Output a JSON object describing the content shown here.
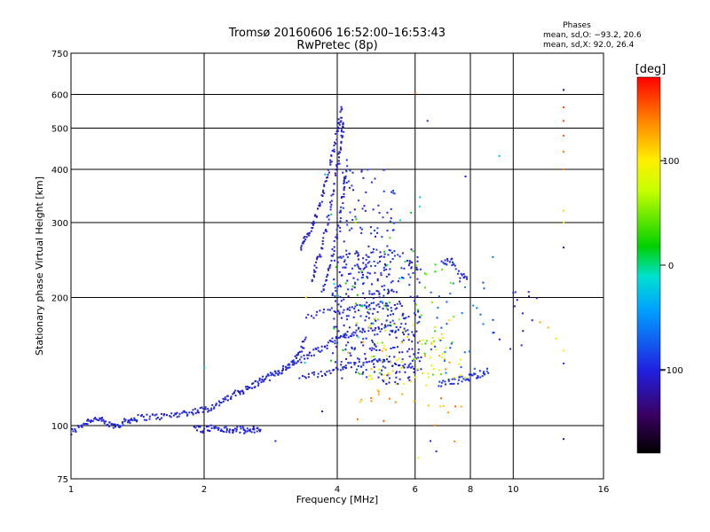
{
  "chart_data": {
    "type": "scatter",
    "title": "Tromsø 20160606 16:52:00–16:53:43",
    "subtitle": "RwPretec (8p)",
    "xlabel": "Frequency [MHz]",
    "ylabel": "Stationary phase Virtual Height [km]",
    "x_scale": "log",
    "y_scale": "log",
    "xlim": [
      1,
      16
    ],
    "ylim": [
      75,
      750
    ],
    "x_ticks": [
      "1",
      "2",
      "4",
      "6",
      "8",
      "10",
      "16"
    ],
    "x_tick_values": [
      1,
      2,
      4,
      6,
      8,
      10,
      16
    ],
    "y_ticks": [
      "75",
      "100",
      "200",
      "300",
      "400",
      "500",
      "600",
      "750"
    ],
    "y_tick_values": [
      75,
      100,
      200,
      300,
      400,
      500,
      600,
      750
    ],
    "grid": true,
    "phases_box": {
      "title": "Phases",
      "line_o": "mean, sd,O: −93.2, 20.6",
      "line_x": "mean, sd,X:  92.0, 26.4"
    },
    "colorbar": {
      "label": "[deg]",
      "range": [
        -180,
        180
      ],
      "tick_labels": [
        "100",
        "0",
        "−100"
      ],
      "tick_values": [
        100,
        0,
        -100
      ]
    },
    "traces": [
      {
        "name": "",
        "phase": -100,
        "points": [
          [
            1.0,
            96
          ],
          [
            1.05,
            100
          ],
          [
            1.1,
            103
          ],
          [
            1.15,
            104
          ],
          [
            1.2,
            101
          ],
          [
            1.25,
            100
          ],
          [
            1.3,
            101
          ],
          [
            1.35,
            103
          ],
          [
            1.4,
            104
          ],
          [
            1.5,
            105
          ],
          [
            1.6,
            105
          ],
          [
            1.7,
            106
          ],
          [
            1.8,
            107
          ],
          [
            1.9,
            108
          ],
          [
            2.0,
            109
          ],
          [
            2.1,
            111
          ],
          [
            2.2,
            114
          ],
          [
            2.3,
            117
          ],
          [
            2.4,
            120
          ],
          [
            2.5,
            122
          ],
          [
            2.6,
            125
          ],
          [
            2.7,
            128
          ],
          [
            2.8,
            130
          ],
          [
            2.9,
            133
          ],
          [
            3.0,
            135
          ],
          [
            3.1,
            138
          ],
          [
            3.2,
            142
          ],
          [
            3.3,
            150
          ],
          [
            3.4,
            160
          ]
        ]
      },
      {
        "name": "",
        "phase": -100,
        "points": [
          [
            1.9,
            99
          ],
          [
            2.0,
            98
          ],
          [
            2.1,
            99
          ],
          [
            2.2,
            98
          ],
          [
            2.3,
            97
          ],
          [
            2.4,
            98
          ],
          [
            2.5,
            97
          ],
          [
            2.6,
            98
          ],
          [
            2.7,
            98
          ]
        ]
      },
      {
        "name": "",
        "phase": -105,
        "points": [
          [
            3.3,
            262
          ],
          [
            3.4,
            275
          ],
          [
            3.5,
            292
          ],
          [
            3.6,
            315
          ],
          [
            3.7,
            345
          ],
          [
            3.8,
            385
          ],
          [
            3.9,
            430
          ],
          [
            4.0,
            490
          ],
          [
            4.05,
            520
          ],
          [
            4.1,
            560
          ]
        ]
      },
      {
        "name": "",
        "phase": -105,
        "points": [
          [
            3.5,
            220
          ],
          [
            3.6,
            240
          ],
          [
            3.7,
            265
          ],
          [
            3.8,
            300
          ],
          [
            3.9,
            345
          ],
          [
            4.0,
            400
          ],
          [
            4.05,
            440
          ],
          [
            4.1,
            480
          ],
          [
            4.15,
            520
          ]
        ]
      },
      {
        "name": "",
        "phase": -100,
        "points": [
          [
            3.7,
            205
          ],
          [
            3.8,
            225
          ],
          [
            3.9,
            250
          ],
          [
            4.0,
            285
          ],
          [
            4.1,
            330
          ],
          [
            4.15,
            370
          ],
          [
            4.2,
            420
          ]
        ]
      },
      {
        "name": "",
        "phase": -100,
        "points": [
          [
            3.2,
            140
          ],
          [
            3.4,
            145
          ],
          [
            3.6,
            150
          ],
          [
            3.8,
            155
          ],
          [
            4.0,
            160
          ],
          [
            4.3,
            165
          ],
          [
            4.6,
            168
          ],
          [
            5.0,
            170
          ],
          [
            5.5,
            168
          ],
          [
            6.0,
            165
          ]
        ]
      },
      {
        "name": "",
        "phase": -100,
        "points": [
          [
            3.3,
            130
          ],
          [
            3.6,
            132
          ],
          [
            3.9,
            135
          ],
          [
            4.2,
            138
          ],
          [
            4.6,
            140
          ],
          [
            5.0,
            142
          ],
          [
            5.5,
            140
          ],
          [
            6.0,
            138
          ]
        ]
      },
      {
        "name": "",
        "phase": -100,
        "points": [
          [
            3.4,
            180
          ],
          [
            3.8,
            185
          ],
          [
            4.2,
            188
          ],
          [
            4.6,
            190
          ],
          [
            5.0,
            192
          ],
          [
            5.5,
            188
          ]
        ]
      },
      {
        "name": "",
        "phase": -95,
        "points": [
          [
            6.8,
            125
          ],
          [
            7.2,
            127
          ],
          [
            7.6,
            128
          ],
          [
            8.0,
            130
          ],
          [
            8.4,
            132
          ],
          [
            8.8,
            135
          ]
        ]
      },
      {
        "name": "",
        "phase": -100,
        "points": [
          [
            6.9,
            240
          ],
          [
            7.2,
            245
          ],
          [
            7.6,
            225
          ],
          [
            7.9,
            220
          ]
        ]
      }
    ],
    "scatter_groups": [
      {
        "name": "",
        "phase": -100,
        "count": 340,
        "x_range": [
          3.9,
          6.2
        ],
        "y_range": [
          125,
          260
        ]
      },
      {
        "name": "",
        "phase": -95,
        "count": 110,
        "x_range": [
          4.0,
          5.4
        ],
        "y_range": [
          200,
          400
        ]
      },
      {
        "name": "",
        "phase": 90,
        "count": 55,
        "x_range": [
          4.6,
          7.8
        ],
        "y_range": [
          125,
          180
        ]
      },
      {
        "name": "",
        "phase": 40,
        "count": 35,
        "x_range": [
          4.4,
          7.4
        ],
        "y_range": [
          130,
          240
        ]
      },
      {
        "name": "",
        "phase": 120,
        "count": 30,
        "x_range": [
          4.2,
          7.2
        ],
        "y_range": [
          110,
          170
        ]
      },
      {
        "name": "",
        "phase": -70,
        "count": 35,
        "x_range": [
          6.5,
          9.0
        ],
        "y_range": [
          130,
          260
        ]
      },
      {
        "name": "",
        "phase": 140,
        "count": 12,
        "x_range": [
          4.4,
          8.0
        ],
        "y_range": [
          90,
          120
        ]
      },
      {
        "name": "",
        "phase": 20,
        "count": 20,
        "x_range": [
          3.8,
          6.0
        ],
        "y_range": [
          140,
          320
        ]
      },
      {
        "name": "",
        "phase": -100,
        "count": 14,
        "x_range": [
          9.0,
          12.0
        ],
        "y_range": [
          150,
          210
        ]
      },
      {
        "name": "",
        "phase": -20,
        "count": 10,
        "x_range": [
          3.3,
          6.8
        ],
        "y_range": [
          140,
          420
        ]
      }
    ],
    "isolated_points": [
      [
        6.0,
        605,
        150
      ],
      [
        6.4,
        520,
        -100
      ],
      [
        7.8,
        385,
        -100
      ],
      [
        9.3,
        430,
        -20
      ],
      [
        13.0,
        615,
        -140
      ],
      [
        13.0,
        262,
        -140
      ],
      [
        13.0,
        93,
        -140
      ],
      [
        2.9,
        92,
        -100
      ],
      [
        13.0,
        560,
        160
      ],
      [
        13.0,
        520,
        155
      ],
      [
        13.0,
        480,
        150
      ],
      [
        13.0,
        440,
        145
      ],
      [
        13.0,
        400,
        140
      ],
      [
        13.0,
        320,
        110
      ],
      [
        13.0,
        300,
        100
      ],
      [
        13.0,
        150,
        100
      ],
      [
        13.0,
        140,
        -100
      ],
      [
        12.5,
        160,
        80
      ],
      [
        12.0,
        170,
        120
      ],
      [
        6.1,
        84,
        90
      ],
      [
        6.5,
        92,
        -100
      ],
      [
        6.7,
        87,
        -100
      ],
      [
        3.4,
        200,
        110
      ],
      [
        3.7,
        108,
        -110
      ],
      [
        4.4,
        300,
        60
      ],
      [
        11.5,
        175,
        130
      ],
      [
        10.0,
        205,
        -100
      ],
      [
        2.0,
        137,
        -20
      ]
    ]
  }
}
